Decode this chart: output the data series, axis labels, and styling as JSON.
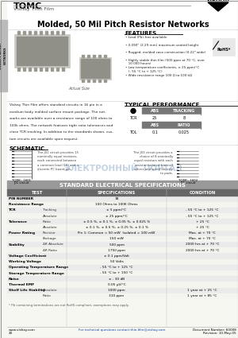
{
  "title_main": "TOMC",
  "subtitle": "Vishay Thin Film",
  "main_title": "Molded, 50 Mil Pitch Resistor Networks",
  "features_title": "FEATURES",
  "features": [
    "Lead (Pb)-free available",
    "0.090\" (2.29 mm) maximum seated height",
    "Rugged, molded case construction (0.22\" wide)",
    "Highly stable thin film (500 ppm at 70 °C, over\n   10 000 hours)",
    "Low temperature coefficients, ± 25 ppm/°C\n   (- 55 °C to + 125 °C)",
    "Wide resistance range 100 Ω to 100 kΩ"
  ],
  "typical_perf_title": "TYPICAL PERFORMANCE",
  "schematic_title": "SCHEMATIC",
  "std_elec_title": "STANDARD ELECTRICAL SPECIFICATIONS",
  "footnote": "* Pb containing terminations are not RoHS compliant, exemptions may apply.",
  "footer_left": "www.vishay.com",
  "footer_mid": "For technical questions contact thin.film@vishay.com",
  "footer_doc": "Document Number: 60008",
  "footer_rev": "Revision: 10-May-05",
  "footer_page": "20"
}
